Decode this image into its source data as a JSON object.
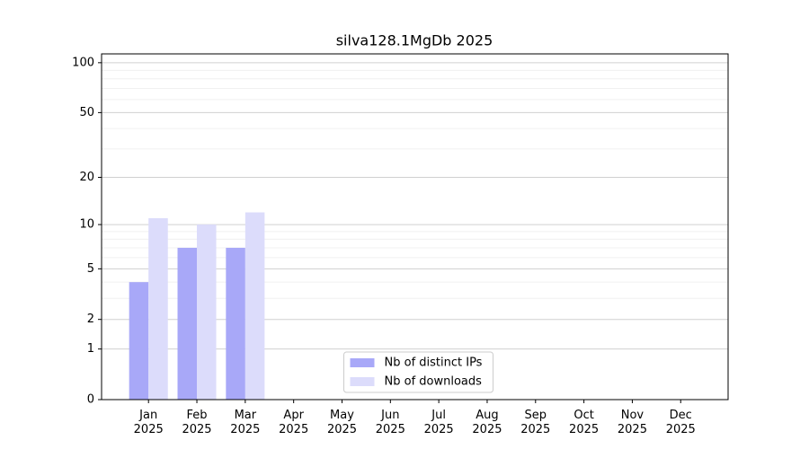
{
  "chart_data": {
    "type": "bar",
    "title": "silva128.1MgDb 2025",
    "categories": [
      "Jan\n2025",
      "Feb\n2025",
      "Mar\n2025",
      "Apr\n2025",
      "May\n2025",
      "Jun\n2025",
      "Jul\n2025",
      "Aug\n2025",
      "Sep\n2025",
      "Oct\n2025",
      "Nov\n2025",
      "Dec\n2025"
    ],
    "series": [
      {
        "name": "Nb of distinct IPs",
        "color": "#a8a8f8",
        "values": [
          4,
          7,
          7,
          0,
          0,
          0,
          0,
          0,
          0,
          0,
          0,
          0
        ]
      },
      {
        "name": "Nb of downloads",
        "color": "#dcdcfb",
        "values": [
          11,
          10,
          12,
          0,
          0,
          0,
          0,
          0,
          0,
          0,
          0,
          0
        ]
      }
    ],
    "y_scale": "log1p",
    "ylim": [
      0,
      113
    ],
    "yticks": [
      0,
      1,
      2,
      5,
      10,
      20,
      50,
      100
    ],
    "yticks_minor": [
      3,
      4,
      6,
      7,
      8,
      9,
      30,
      40,
      60,
      70,
      80,
      90
    ],
    "grid": true,
    "legend": "lower center"
  }
}
